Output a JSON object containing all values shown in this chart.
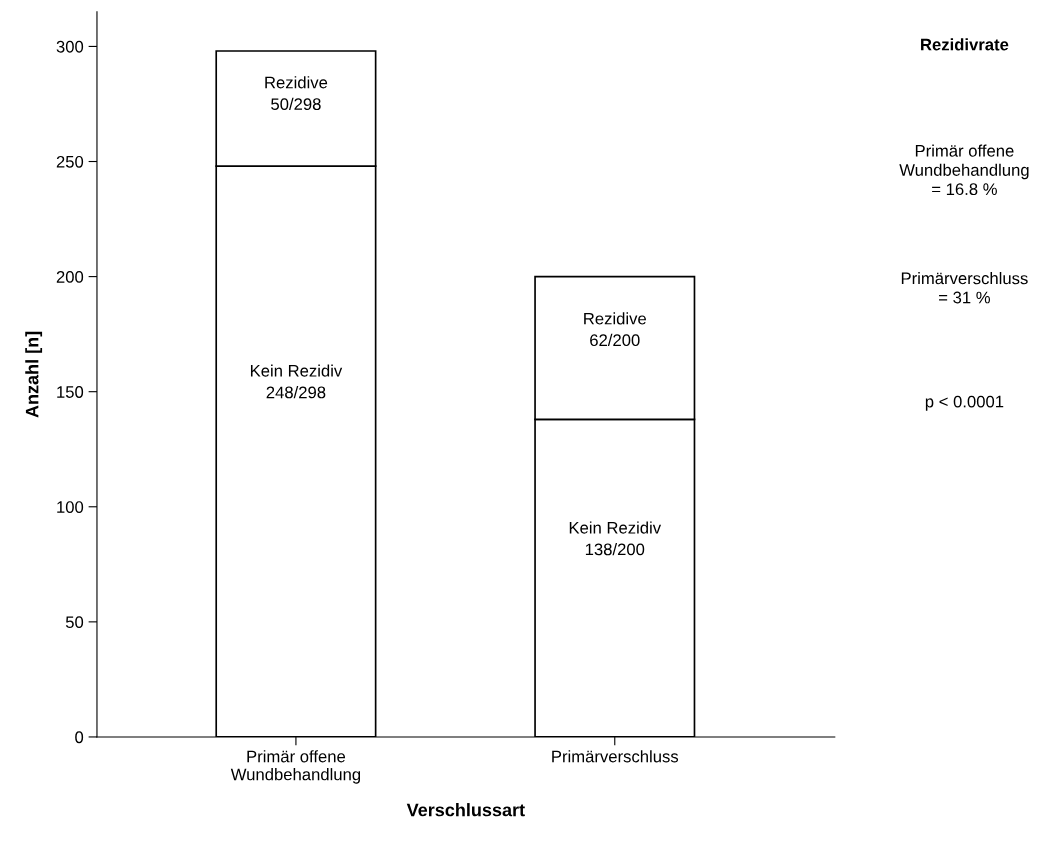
{
  "chart_data": {
    "type": "bar",
    "stacked": true,
    "xlabel": "Verschlussart",
    "ylabel": "Anzahl [n]",
    "categories": [
      "Primär offene\nWundbehandlung",
      "Primärverschluss"
    ],
    "series": [
      {
        "name": "Kein Rezidiv",
        "color": "#ffffff",
        "values": [
          248,
          138
        ],
        "value_labels": [
          "248/298",
          "138/200"
        ]
      },
      {
        "name": "Rezidive",
        "color": "#ffffff",
        "values": [
          50,
          62
        ],
        "value_labels": [
          "50/298",
          "62/200"
        ]
      }
    ],
    "ylim": [
      0,
      315
    ],
    "yticks": [
      0,
      50,
      100,
      150,
      200,
      250,
      300
    ],
    "grid": false,
    "legend": false,
    "annotations": [
      "Rezidivrate",
      "Primär offene\nWundbehandlung\n= 16.8 %",
      "Primärverschluss\n= 31 %",
      "p < 0.0001"
    ]
  }
}
